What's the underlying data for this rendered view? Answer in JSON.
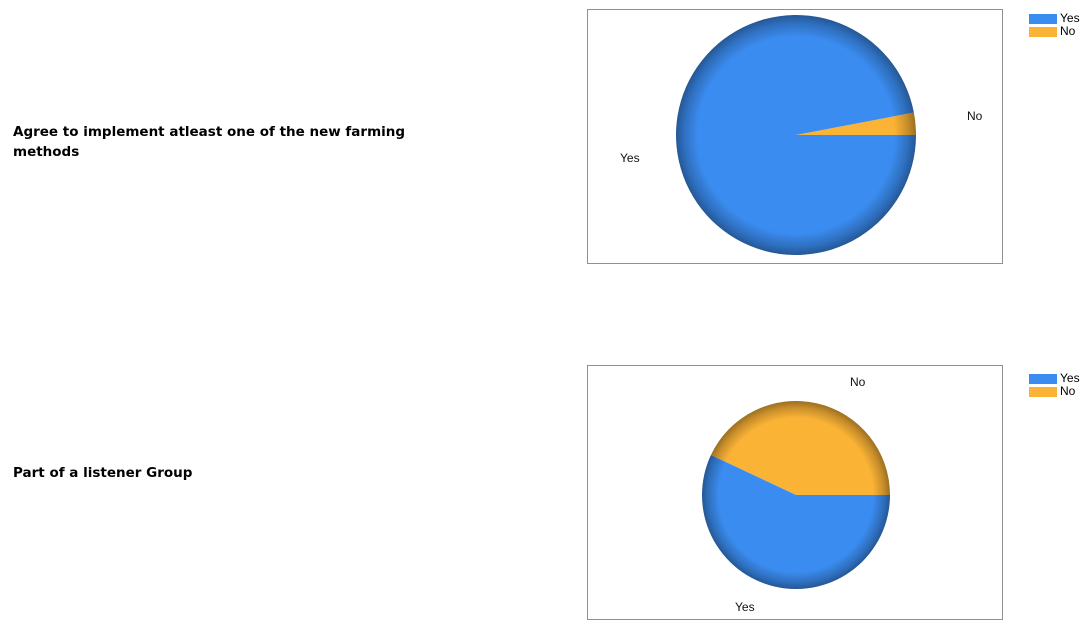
{
  "colors": {
    "Yes": "#3b8cf0",
    "No": "#fbb336"
  },
  "questions": [
    {
      "text": "Agree to implement atleast one of the new farming methods"
    },
    {
      "text": "Part of a listener Group"
    }
  ],
  "chart_data": [
    {
      "type": "pie",
      "categories": [
        "Yes",
        "No"
      ],
      "values": [
        97,
        3
      ],
      "legend": [
        "Yes",
        "No"
      ],
      "legend_position": "top-right",
      "slice_labels": [
        "Yes",
        "No"
      ]
    },
    {
      "type": "pie",
      "categories": [
        "Yes",
        "No"
      ],
      "values": [
        57,
        43
      ],
      "legend": [
        "Yes",
        "No"
      ],
      "legend_position": "top-right",
      "slice_labels": [
        "Yes",
        "No"
      ]
    }
  ]
}
